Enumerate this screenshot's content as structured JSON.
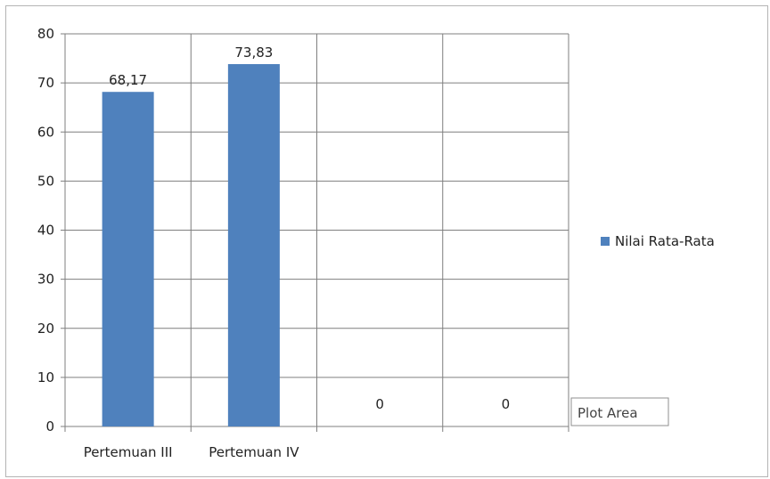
{
  "chart_data": {
    "type": "bar",
    "categories": [
      "Pertemuan III",
      "Pertemuan IV",
      "",
      ""
    ],
    "series": [
      {
        "name": "Nilai Rata-Rata",
        "values": [
          68.17,
          73.83,
          0,
          0
        ],
        "data_labels": [
          "68,17",
          "73,83",
          "0",
          "0"
        ],
        "color": "#4f81bd"
      }
    ],
    "ylim": [
      0,
      80
    ],
    "yticks": [
      0,
      10,
      20,
      30,
      40,
      50,
      60,
      70,
      80
    ],
    "grid": true,
    "legend_position": "right",
    "title": "",
    "xlabel": "",
    "ylabel": ""
  },
  "tooltip": {
    "label": "Plot Area"
  }
}
